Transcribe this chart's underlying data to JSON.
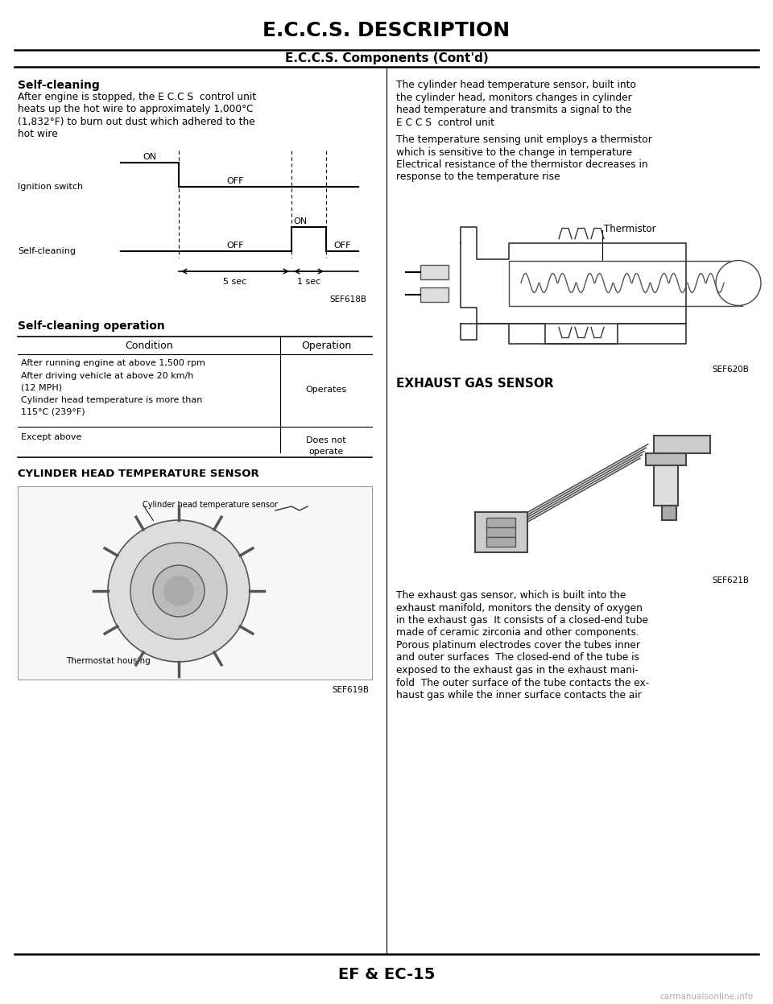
{
  "title": "E.C.C.S. DESCRIPTION",
  "subtitle": "E.C.C.S. Components (Cont'd)",
  "footer": "EF & EC-15",
  "watermark": "carmanualsonline.info",
  "bg_color": "#ffffff",
  "text_color": "#000000",
  "left_col": {
    "self_cleaning_title": "Self-cleaning",
    "self_cleaning_body_l1": "After engine is stopped, the E C.C S  control unit",
    "self_cleaning_body_l2": "heats up the hot wire to approximately 1,000°C",
    "self_cleaning_body_l3": "(1,832°F) to burn out dust which adhered to the",
    "self_cleaning_body_l4": "hot wire",
    "diagram_label_ignition": "Ignition switch",
    "diagram_label_self_cleaning": "Self-cleaning",
    "diagram_on1": "ON",
    "diagram_off1": "OFF",
    "diagram_on2": "ON",
    "diagram_off2": "OFF",
    "diagram_off3": "OFF",
    "diagram_5sec": "5 sec",
    "diagram_1sec": "1 sec",
    "diagram_ref": "SEF618B",
    "table_title": "Self-cleaning operation",
    "table_col1": "Condition",
    "table_col2": "Operation",
    "table_row1_c1": "After running engine at above 1,500 rpm",
    "table_row2_c1": "After driving vehicle at above 20 km/h",
    "table_row2_c1b": "(12 MPH)",
    "table_row3_c1": "Cylinder head temperature is more than",
    "table_row3_c1b": "115°C (239°F)",
    "table_row_op": "Operates",
    "table_row4_c1": "Except above",
    "table_row4_c2a": "Does not",
    "table_row4_c2b": "operate",
    "cylinder_head_title": "CYLINDER HEAD TEMPERATURE SENSOR",
    "cylinder_head_ref": "SEF619B",
    "cylinder_head_label": "Cylinder head temperature sensor",
    "thermostat_label": "Thermostat housing"
  },
  "right_col": {
    "body1_l1": "The cylinder head temperature sensor, built into",
    "body1_l2": "the cylinder head, monitors changes in cylinder",
    "body1_l3": "head temperature and transmits a signal to the",
    "body1_l4": "E C C S  control unit",
    "body2_l1": "The temperature sensing unit employs a thermistor",
    "body2_l2": "which is sensitive to the change in temperature",
    "body2_l3": "Electrical resistance of the thermistor decreases in",
    "body2_l4": "response to the temperature rise",
    "thermistor_label": "Thermistor",
    "thermistor_ref": "SEF620B",
    "exhaust_title": "EXHAUST GAS SENSOR",
    "exhaust_ref": "SEF621B",
    "exhaust_body_l1": "The exhaust gas sensor, which is built into the",
    "exhaust_body_l2": "exhaust manifold, monitors the density of oxygen",
    "exhaust_body_l3": "in the exhaust gas  It consists of a closed-end tube",
    "exhaust_body_l4": "made of ceramic zirconia and other components.",
    "exhaust_body_l5": "Porous platinum electrodes cover the tubes inner",
    "exhaust_body_l6": "and outer surfaces  The closed-end of the tube is",
    "exhaust_body_l7": "exposed to the exhaust gas in the exhaust mani-",
    "exhaust_body_l8": "fold  The outer surface of the tube contacts the ex-",
    "exhaust_body_l9": "haust gas while the inner surface contacts the air"
  }
}
